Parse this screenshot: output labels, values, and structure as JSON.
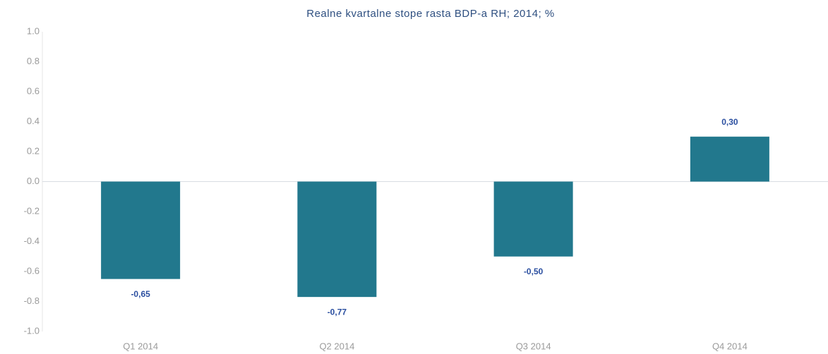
{
  "chart_data": {
    "type": "bar",
    "title": "Realne kvartalne stope rasta BDP-a RH;  2014; %",
    "categories": [
      "Q1 2014",
      "Q2 2014",
      "Q3 2014",
      "Q4 2014"
    ],
    "values": [
      -0.65,
      -0.77,
      -0.5,
      0.3
    ],
    "value_labels": [
      "-0,65",
      "-0,77",
      "-0,50",
      "0,30"
    ],
    "color": "#22788d",
    "ylim": [
      -1,
      1
    ],
    "yticks": [
      {
        "value": 1,
        "label": "1.0"
      },
      0.8,
      0.6,
      0.4,
      0.2,
      {
        "value": 0,
        "label": "0.0"
      },
      -0.2,
      -0.4,
      -0.6,
      -0.8,
      {
        "value": -1,
        "label": "-1.0"
      }
    ],
    "grid": false
  }
}
